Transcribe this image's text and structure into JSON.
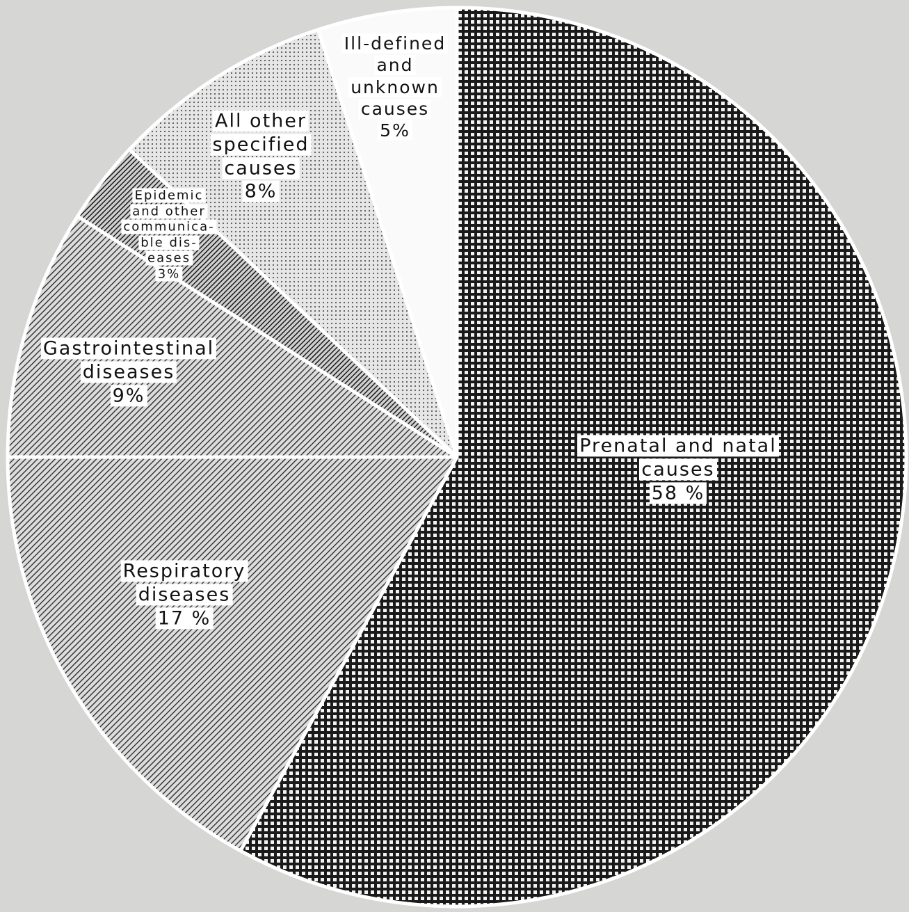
{
  "chart_data": {
    "type": "pie",
    "categories": [
      "Prenatal and natal causes",
      "Respiratory\ndiseases",
      "Gastrointestinal\ndiseases",
      "Epidemic\nand other\ncommunica-\nble dis-\neases",
      "All other\nspecified\ncauses",
      "Ill-defined\nand\nunknown\ncauses"
    ],
    "values": [
      58,
      17,
      9,
      3,
      8,
      5
    ],
    "value_labels": [
      "58 %",
      "17 %",
      "9%",
      "3%",
      "8%",
      "5%"
    ],
    "patterns": [
      "checker",
      "hatch",
      "hatch",
      "hatch-dense",
      "dots",
      "none"
    ]
  }
}
